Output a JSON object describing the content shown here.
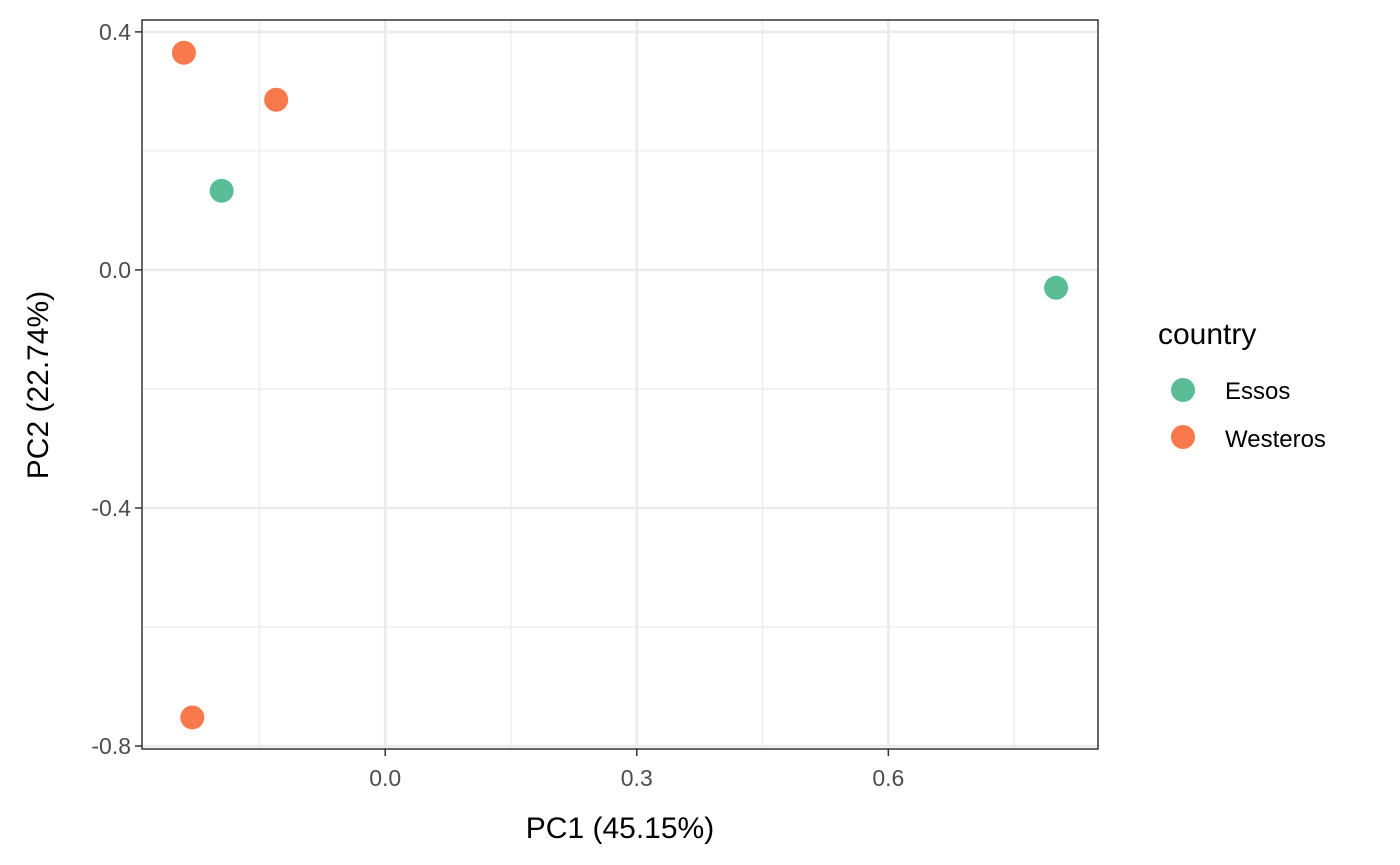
{
  "chart_data": {
    "type": "scatter",
    "xlabel": "PC1 (45.15%)",
    "ylabel": "PC2 (22.74%)",
    "xlim": [
      -0.29,
      0.85
    ],
    "ylim": [
      -0.805,
      0.42
    ],
    "x_ticks": [
      0.0,
      0.3,
      0.6
    ],
    "x_tick_labels": [
      "0.0",
      "0.3",
      "0.6"
    ],
    "x_minor_ticks": [
      -0.15,
      0.15,
      0.45,
      0.75
    ],
    "y_ticks": [
      0.4,
      0.0,
      -0.4,
      -0.8
    ],
    "y_tick_labels": [
      "0.4",
      "0.0",
      "-0.4",
      "-0.8"
    ],
    "y_minor_ticks": [
      0.2,
      -0.2,
      -0.6
    ],
    "grid": true,
    "legend": {
      "title": "country",
      "placement": "right",
      "entries": [
        {
          "label": "Essos",
          "color": "#5BBC98"
        },
        {
          "label": "Westeros",
          "color": "#F7794C"
        }
      ]
    },
    "series": [
      {
        "name": "Essos",
        "color": "#5BBC98",
        "points": [
          {
            "x": -0.195,
            "y": 0.133
          },
          {
            "x": 0.8,
            "y": -0.03
          }
        ]
      },
      {
        "name": "Westeros",
        "color": "#F7794C",
        "points": [
          {
            "x": -0.24,
            "y": 0.365
          },
          {
            "x": -0.13,
            "y": 0.286
          },
          {
            "x": -0.23,
            "y": -0.752
          }
        ]
      }
    ]
  }
}
